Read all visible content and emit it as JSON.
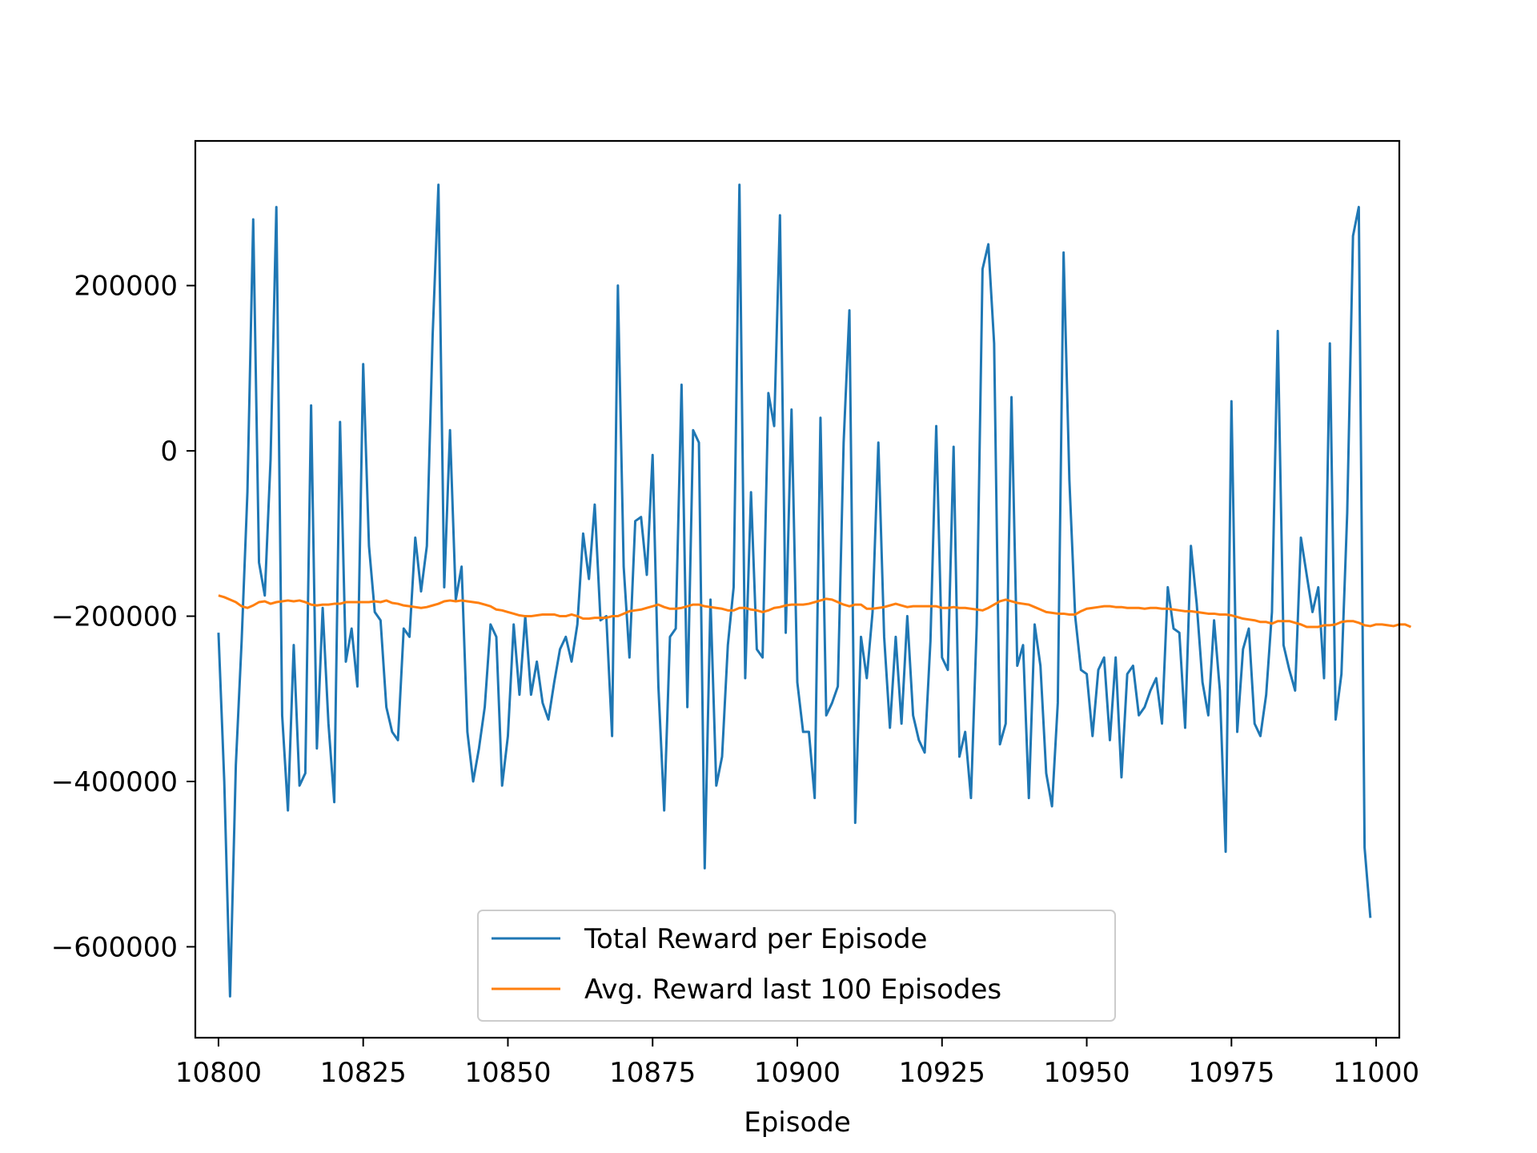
{
  "chart_data": {
    "type": "line",
    "title": "",
    "xlabel": "Episode",
    "ylabel": "",
    "xlim": [
      10796,
      11004
    ],
    "ylim": [
      -710000,
      375000
    ],
    "xticks": [
      10800,
      10825,
      10850,
      10875,
      10900,
      10925,
      10950,
      10975,
      11000
    ],
    "xtick_labels": [
      "10800",
      "10825",
      "10850",
      "10875",
      "10900",
      "10925",
      "10950",
      "10975",
      "11000"
    ],
    "yticks": [
      200000,
      0,
      -200000,
      -400000,
      -600000
    ],
    "ytick_labels": [
      "200000",
      "0",
      "−200000",
      "−400000",
      "−600000"
    ],
    "grid": false,
    "legend": {
      "placement": "lower center",
      "items": [
        "Total Reward per Episode",
        "Avg. Reward last 100 Episodes"
      ]
    },
    "colors": {
      "total": "#1f77b4",
      "avg": "#ff7f0e"
    },
    "x_start": 10800,
    "series": [
      {
        "name": "Total Reward per Episode",
        "values": [
          -220000,
          -400000,
          -660000,
          -380000,
          -230000,
          -50000,
          280000,
          -135000,
          -175000,
          -10000,
          295000,
          -320000,
          -435000,
          -235000,
          -405000,
          -390000,
          55000,
          -360000,
          -190000,
          -330000,
          -425000,
          35000,
          -255000,
          -215000,
          -285000,
          105000,
          -115000,
          -195000,
          -205000,
          -310000,
          -340000,
          -350000,
          -215000,
          -225000,
          -105000,
          -170000,
          -115000,
          140000,
          322000,
          -165000,
          25000,
          -180000,
          -140000,
          -340000,
          -400000,
          -360000,
          -310000,
          -210000,
          -225000,
          -405000,
          -345000,
          -210000,
          -295000,
          -200000,
          -295000,
          -255000,
          -305000,
          -325000,
          -280000,
          -240000,
          -225000,
          -255000,
          -210000,
          -100000,
          -155000,
          -65000,
          -205000,
          -200000,
          -345000,
          200000,
          -140000,
          -250000,
          -85000,
          -80000,
          -150000,
          -5000,
          -285000,
          -435000,
          -225000,
          -215000,
          80000,
          -310000,
          25000,
          10000,
          -505000,
          -180000,
          -405000,
          -370000,
          -235000,
          -165000,
          322000,
          -275000,
          -50000,
          -240000,
          -250000,
          70000,
          30000,
          285000,
          -220000,
          50000,
          -280000,
          -340000,
          -340000,
          -420000,
          40000,
          -320000,
          -305000,
          -285000,
          10000,
          170000,
          -450000,
          -225000,
          -275000,
          -195000,
          10000,
          -225000,
          -335000,
          -225000,
          -330000,
          -200000,
          -320000,
          -350000,
          -365000,
          -230000,
          30000,
          -250000,
          -265000,
          5000,
          -370000,
          -340000,
          -420000,
          -210000,
          220000,
          250000,
          130000,
          -355000,
          -330000,
          65000,
          -260000,
          -235000,
          -420000,
          -210000,
          -260000,
          -390000,
          -430000,
          -305000,
          240000,
          -35000,
          -200000,
          -265000,
          -270000,
          -345000,
          -265000,
          -250000,
          -350000,
          -250000,
          -395000,
          -270000,
          -260000,
          -320000,
          -310000,
          -290000,
          -275000,
          -330000,
          -165000,
          -215000,
          -220000,
          -335000,
          -115000,
          -185000,
          -280000,
          -320000,
          -205000,
          -290000,
          -485000,
          60000,
          -340000,
          -240000,
          -215000,
          -330000,
          -345000,
          -295000,
          -195000,
          145000,
          -235000,
          -265000,
          -290000,
          -105000,
          -150000,
          -195000,
          -165000,
          -275000,
          130000,
          -325000,
          -270000,
          -75000,
          260000,
          295000,
          -480000,
          -565000
        ]
      },
      {
        "name": "Avg. Reward last 100 Episodes",
        "values": [
          -175000,
          -177000,
          -180000,
          -183000,
          -188000,
          -190000,
          -187000,
          -183000,
          -182000,
          -185000,
          -183000,
          -182000,
          -181000,
          -182000,
          -181000,
          -183000,
          -186000,
          -187000,
          -186000,
          -186000,
          -185000,
          -185000,
          -183000,
          -183000,
          -183000,
          -183000,
          -183000,
          -182000,
          -183000,
          -181000,
          -184000,
          -185000,
          -187000,
          -188000,
          -189000,
          -190000,
          -189000,
          -187000,
          -185000,
          -182000,
          -181000,
          -182000,
          -181000,
          -182000,
          -183000,
          -184000,
          -186000,
          -188000,
          -192000,
          -193000,
          -195000,
          -197000,
          -199000,
          -200000,
          -200000,
          -199000,
          -198000,
          -198000,
          -198000,
          -200000,
          -200000,
          -198000,
          -200000,
          -203000,
          -203000,
          -202000,
          -202000,
          -202000,
          -200000,
          -200000,
          -197000,
          -194000,
          -193000,
          -192000,
          -190000,
          -188000,
          -186000,
          -189000,
          -191000,
          -191000,
          -190000,
          -188000,
          -186000,
          -186000,
          -188000,
          -189000,
          -190000,
          -191000,
          -193000,
          -193000,
          -190000,
          -190000,
          -192000,
          -193000,
          -195000,
          -193000,
          -190000,
          -189000,
          -187000,
          -186000,
          -186000,
          -186000,
          -185000,
          -183000,
          -181000,
          -179000,
          -180000,
          -183000,
          -186000,
          -188000,
          -186000,
          -186000,
          -191000,
          -191000,
          -190000,
          -189000,
          -187000,
          -185000,
          -187000,
          -189000,
          -188000,
          -188000,
          -188000,
          -188000,
          -188000,
          -190000,
          -190000,
          -189000,
          -190000,
          -190000,
          -191000,
          -192000,
          -193000,
          -190000,
          -186000,
          -182000,
          -180000,
          -182000,
          -184000,
          -185000,
          -186000,
          -189000,
          -192000,
          -195000,
          -196000,
          -197000,
          -197000,
          -198000,
          -198000,
          -194000,
          -191000,
          -190000,
          -189000,
          -188000,
          -188000,
          -189000,
          -189000,
          -190000,
          -190000,
          -190000,
          -191000,
          -190000,
          -190000,
          -191000,
          -191000,
          -192000,
          -193000,
          -194000,
          -194000,
          -195000,
          -196000,
          -197000,
          -197000,
          -198000,
          -198000,
          -199000,
          -201000,
          -203000,
          -204000,
          -205000,
          -207000,
          -207000,
          -209000,
          -206000,
          -206000,
          -206000,
          -208000,
          -210000,
          -213000,
          -213000,
          -213000,
          -211000,
          -211000,
          -210000,
          -207000,
          -206000,
          -206000,
          -208000,
          -211000,
          -212000,
          -210000,
          -210000,
          -211000,
          -212000,
          -210000,
          -210000,
          -213000
        ]
      }
    ]
  }
}
